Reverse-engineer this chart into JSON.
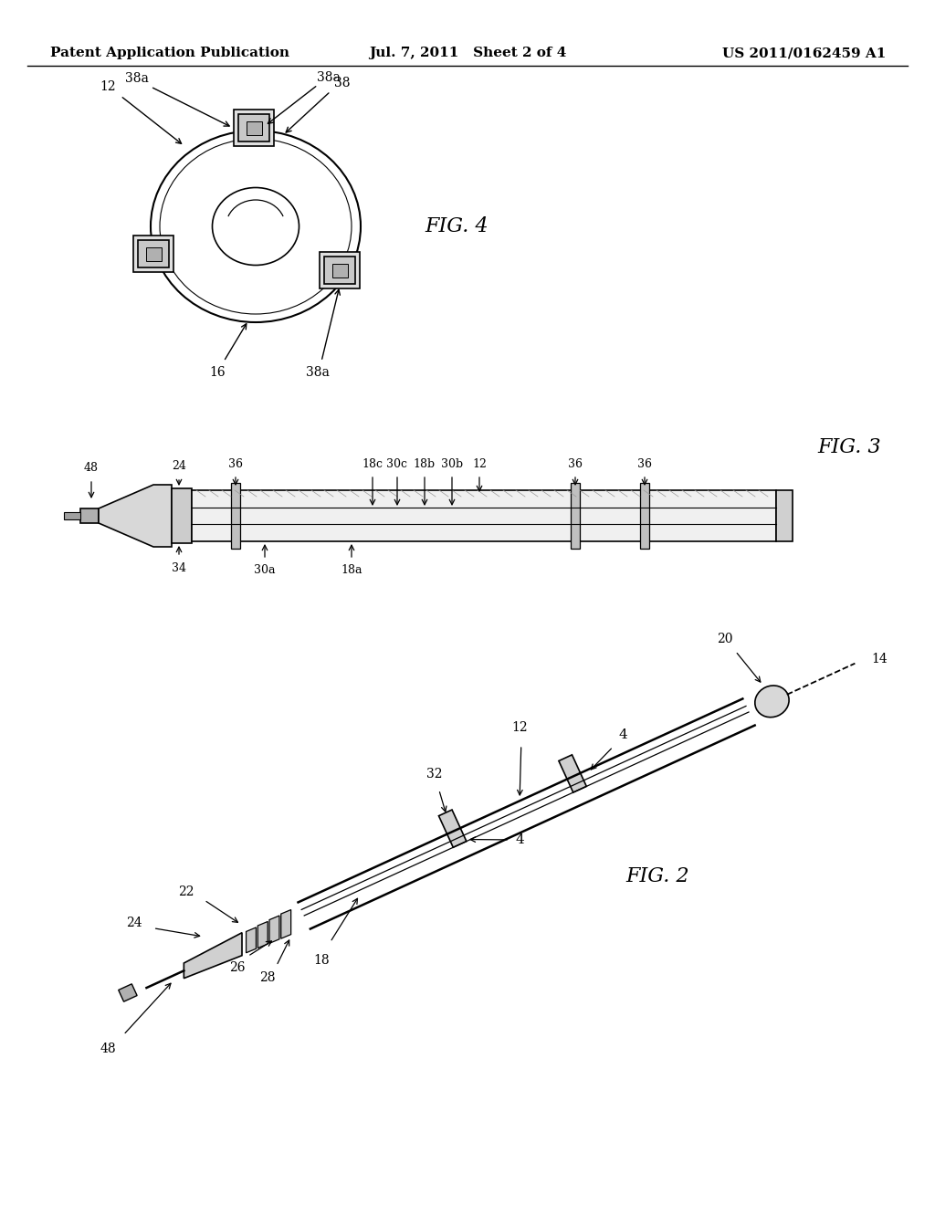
{
  "bg_color": "#ffffff",
  "header_left": "Patent Application Publication",
  "header_mid": "Jul. 7, 2011   Sheet 2 of 4",
  "header_right": "US 2011/0162459 A1",
  "header_fontsize": 11,
  "fig4_label": "FIG. 4",
  "fig3_label": "FIG. 3",
  "fig2_label": "FIG. 2",
  "line_color": "#000000",
  "line_width": 1.2,
  "label_fontsize": 10,
  "fig_label_fontsize": 16
}
